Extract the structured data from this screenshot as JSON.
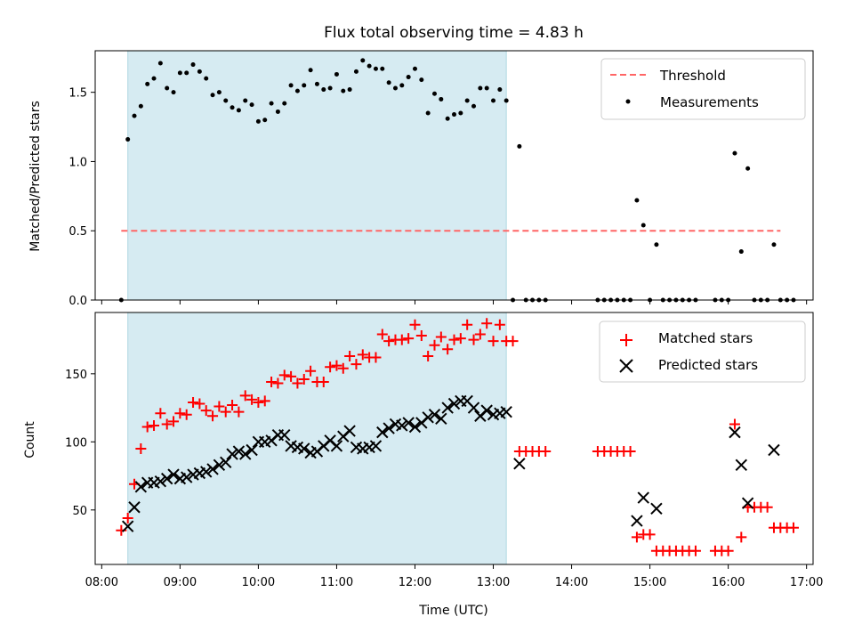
{
  "chart_data": [
    {
      "type": "scatter",
      "title": "Flux total observing time = 4.83 h",
      "xlabel": "",
      "ylabel": "Matched/Predicted stars",
      "ylim": [
        0,
        1.8
      ],
      "yticks": [
        "0.0",
        "0.5",
        "1.0",
        "1.5"
      ],
      "xlim": [
        "07:55",
        "17:05"
      ],
      "shaded_span": {
        "from": "08:20",
        "to": "13:10",
        "color": "#add8e6"
      },
      "legend_position": "top-right",
      "threshold": {
        "name": "Threshold",
        "y": 0.5,
        "x_from": "08:15",
        "x_to": "16:40",
        "color": "#ff6666",
        "style": "dashed"
      },
      "series": [
        {
          "name": "Measurements",
          "color": "#000000",
          "points": [
            [
              "08:15",
              0.0
            ],
            [
              "08:20",
              1.16
            ],
            [
              "08:25",
              1.33
            ],
            [
              "08:30",
              1.4
            ],
            [
              "08:35",
              1.56
            ],
            [
              "08:40",
              1.6
            ],
            [
              "08:45",
              1.71
            ],
            [
              "08:50",
              1.53
            ],
            [
              "08:55",
              1.5
            ],
            [
              "09:00",
              1.64
            ],
            [
              "09:05",
              1.64
            ],
            [
              "09:10",
              1.7
            ],
            [
              "09:15",
              1.65
            ],
            [
              "09:20",
              1.6
            ],
            [
              "09:25",
              1.48
            ],
            [
              "09:30",
              1.5
            ],
            [
              "09:35",
              1.44
            ],
            [
              "09:40",
              1.39
            ],
            [
              "09:45",
              1.37
            ],
            [
              "09:50",
              1.44
            ],
            [
              "09:55",
              1.41
            ],
            [
              "10:00",
              1.29
            ],
            [
              "10:05",
              1.3
            ],
            [
              "10:10",
              1.42
            ],
            [
              "10:15",
              1.36
            ],
            [
              "10:20",
              1.42
            ],
            [
              "10:25",
              1.55
            ],
            [
              "10:30",
              1.51
            ],
            [
              "10:35",
              1.55
            ],
            [
              "10:40",
              1.66
            ],
            [
              "10:45",
              1.56
            ],
            [
              "10:50",
              1.52
            ],
            [
              "10:55",
              1.53
            ],
            [
              "11:00",
              1.63
            ],
            [
              "11:05",
              1.51
            ],
            [
              "11:10",
              1.52
            ],
            [
              "11:15",
              1.65
            ],
            [
              "11:20",
              1.73
            ],
            [
              "11:25",
              1.69
            ],
            [
              "11:30",
              1.67
            ],
            [
              "11:35",
              1.67
            ],
            [
              "11:40",
              1.57
            ],
            [
              "11:45",
              1.53
            ],
            [
              "11:50",
              1.55
            ],
            [
              "11:55",
              1.61
            ],
            [
              "12:00",
              1.67
            ],
            [
              "12:05",
              1.59
            ],
            [
              "12:10",
              1.35
            ],
            [
              "12:15",
              1.49
            ],
            [
              "12:20",
              1.45
            ],
            [
              "12:25",
              1.31
            ],
            [
              "12:30",
              1.34
            ],
            [
              "12:35",
              1.35
            ],
            [
              "12:40",
              1.44
            ],
            [
              "12:45",
              1.4
            ],
            [
              "12:50",
              1.53
            ],
            [
              "12:55",
              1.53
            ],
            [
              "13:00",
              1.44
            ],
            [
              "13:05",
              1.52
            ],
            [
              "13:10",
              1.44
            ],
            [
              "13:15",
              0.0
            ],
            [
              "13:20",
              1.11
            ],
            [
              "13:25",
              0.0
            ],
            [
              "13:30",
              0.0
            ],
            [
              "13:35",
              0.0
            ],
            [
              "13:40",
              0.0
            ],
            [
              "14:20",
              0.0
            ],
            [
              "14:25",
              0.0
            ],
            [
              "14:30",
              0.0
            ],
            [
              "14:35",
              0.0
            ],
            [
              "14:40",
              0.0
            ],
            [
              "14:45",
              0.0
            ],
            [
              "14:50",
              0.72
            ],
            [
              "14:55",
              0.54
            ],
            [
              "15:00",
              0.0
            ],
            [
              "15:05",
              0.4
            ],
            [
              "15:10",
              0.0
            ],
            [
              "15:15",
              0.0
            ],
            [
              "15:20",
              0.0
            ],
            [
              "15:25",
              0.0
            ],
            [
              "15:30",
              0.0
            ],
            [
              "15:35",
              0.0
            ],
            [
              "15:50",
              0.0
            ],
            [
              "15:55",
              0.0
            ],
            [
              "16:00",
              0.0
            ],
            [
              "16:05",
              1.06
            ],
            [
              "16:10",
              0.35
            ],
            [
              "16:15",
              0.95
            ],
            [
              "16:20",
              0.0
            ],
            [
              "16:25",
              0.0
            ],
            [
              "16:30",
              0.0
            ],
            [
              "16:35",
              0.4
            ],
            [
              "16:40",
              0.0
            ],
            [
              "16:45",
              0.0
            ],
            [
              "16:50",
              0.0
            ]
          ]
        }
      ]
    },
    {
      "type": "scatter",
      "title": "",
      "xlabel": "Time (UTC)",
      "ylabel": "Count",
      "ylim": [
        10,
        195
      ],
      "yticks": [
        "50",
        "100",
        "150"
      ],
      "xlim": [
        "07:55",
        "17:05"
      ],
      "xticks": [
        "08:00",
        "09:00",
        "10:00",
        "11:00",
        "12:00",
        "13:00",
        "14:00",
        "15:00",
        "16:00",
        "17:00"
      ],
      "shaded_span": {
        "from": "08:20",
        "to": "13:10",
        "color": "#add8e6"
      },
      "legend_position": "top-right",
      "series": [
        {
          "name": "Matched stars",
          "color": "#ff0000",
          "marker": "plus",
          "points": [
            [
              "08:15",
              35
            ],
            [
              "08:20",
              44
            ],
            [
              "08:25",
              69
            ],
            [
              "08:30",
              95
            ],
            [
              "08:35",
              111
            ],
            [
              "08:40",
              112
            ],
            [
              "08:45",
              121
            ],
            [
              "08:50",
              113
            ],
            [
              "08:55",
              115
            ],
            [
              "09:00",
              121
            ],
            [
              "09:05",
              120
            ],
            [
              "09:10",
              129
            ],
            [
              "09:15",
              128
            ],
            [
              "09:20",
              123
            ],
            [
              "09:25",
              119
            ],
            [
              "09:30",
              126
            ],
            [
              "09:35",
              122
            ],
            [
              "09:40",
              127
            ],
            [
              "09:45",
              122
            ],
            [
              "09:50",
              134
            ],
            [
              "09:55",
              131
            ],
            [
              "10:00",
              129
            ],
            [
              "10:05",
              130
            ],
            [
              "10:10",
              144
            ],
            [
              "10:15",
              143
            ],
            [
              "10:20",
              149
            ],
            [
              "10:25",
              148
            ],
            [
              "10:30",
              143
            ],
            [
              "10:35",
              146
            ],
            [
              "10:40",
              152
            ],
            [
              "10:45",
              144
            ],
            [
              "10:50",
              144
            ],
            [
              "10:55",
              155
            ],
            [
              "11:00",
              156
            ],
            [
              "11:05",
              154
            ],
            [
              "11:10",
              163
            ],
            [
              "11:15",
              157
            ],
            [
              "11:20",
              164
            ],
            [
              "11:25",
              162
            ],
            [
              "11:30",
              162
            ],
            [
              "11:35",
              179
            ],
            [
              "11:40",
              174
            ],
            [
              "11:45",
              175
            ],
            [
              "11:50",
              175
            ],
            [
              "11:55",
              176
            ],
            [
              "12:00",
              186
            ],
            [
              "12:05",
              178
            ],
            [
              "12:10",
              163
            ],
            [
              "12:15",
              171
            ],
            [
              "12:20",
              177
            ],
            [
              "12:25",
              168
            ],
            [
              "12:30",
              175
            ],
            [
              "12:35",
              176
            ],
            [
              "12:40",
              186
            ],
            [
              "12:45",
              175
            ],
            [
              "12:50",
              179
            ],
            [
              "12:55",
              187
            ],
            [
              "13:00",
              174
            ],
            [
              "13:05",
              186
            ],
            [
              "13:10",
              174
            ],
            [
              "13:15",
              174
            ],
            [
              "13:20",
              93
            ],
            [
              "13:25",
              93
            ],
            [
              "13:30",
              93
            ],
            [
              "13:35",
              93
            ],
            [
              "13:40",
              93
            ],
            [
              "14:20",
              93
            ],
            [
              "14:25",
              93
            ],
            [
              "14:30",
              93
            ],
            [
              "14:35",
              93
            ],
            [
              "14:40",
              93
            ],
            [
              "14:45",
              93
            ],
            [
              "14:50",
              30
            ],
            [
              "14:55",
              32
            ],
            [
              "15:00",
              32
            ],
            [
              "15:05",
              20
            ],
            [
              "15:10",
              20
            ],
            [
              "15:15",
              20
            ],
            [
              "15:20",
              20
            ],
            [
              "15:25",
              20
            ],
            [
              "15:30",
              20
            ],
            [
              "15:35",
              20
            ],
            [
              "15:50",
              20
            ],
            [
              "15:55",
              20
            ],
            [
              "16:00",
              20
            ],
            [
              "16:05",
              113
            ],
            [
              "16:10",
              30
            ],
            [
              "16:15",
              52
            ],
            [
              "16:20",
              52
            ],
            [
              "16:25",
              52
            ],
            [
              "16:30",
              52
            ],
            [
              "16:35",
              37
            ],
            [
              "16:40",
              37
            ],
            [
              "16:45",
              37
            ],
            [
              "16:50",
              37
            ]
          ]
        },
        {
          "name": "Predicted stars",
          "color": "#000000",
          "marker": "x",
          "points": [
            [
              "08:20",
              38
            ],
            [
              "08:25",
              52
            ],
            [
              "08:30",
              67
            ],
            [
              "08:35",
              70
            ],
            [
              "08:40",
              70
            ],
            [
              "08:45",
              71
            ],
            [
              "08:50",
              73
            ],
            [
              "08:55",
              76
            ],
            [
              "09:00",
              73
            ],
            [
              "09:05",
              74
            ],
            [
              "09:10",
              76
            ],
            [
              "09:15",
              77
            ],
            [
              "09:20",
              78
            ],
            [
              "09:25",
              80
            ],
            [
              "09:30",
              83
            ],
            [
              "09:35",
              85
            ],
            [
              "09:40",
              91
            ],
            [
              "09:45",
              93
            ],
            [
              "09:50",
              91
            ],
            [
              "09:55",
              94
            ],
            [
              "10:00",
              100
            ],
            [
              "10:05",
              100
            ],
            [
              "10:10",
              101
            ],
            [
              "10:15",
              105
            ],
            [
              "10:20",
              105
            ],
            [
              "10:25",
              97
            ],
            [
              "10:30",
              96
            ],
            [
              "10:35",
              95
            ],
            [
              "10:40",
              92
            ],
            [
              "10:45",
              93
            ],
            [
              "10:50",
              97
            ],
            [
              "10:55",
              101
            ],
            [
              "11:00",
              97
            ],
            [
              "11:05",
              104
            ],
            [
              "11:10",
              108
            ],
            [
              "11:15",
              96
            ],
            [
              "11:20",
              95
            ],
            [
              "11:25",
              96
            ],
            [
              "11:30",
              97
            ],
            [
              "11:35",
              107
            ],
            [
              "11:40",
              110
            ],
            [
              "11:45",
              113
            ],
            [
              "11:50",
              112
            ],
            [
              "11:55",
              114
            ],
            [
              "12:00",
              111
            ],
            [
              "12:05",
              114
            ],
            [
              "12:10",
              118
            ],
            [
              "12:15",
              120
            ],
            [
              "12:20",
              117
            ],
            [
              "12:25",
              125
            ],
            [
              "12:30",
              128
            ],
            [
              "12:35",
              130
            ],
            [
              "12:40",
              130
            ],
            [
              "12:45",
              125
            ],
            [
              "12:50",
              119
            ],
            [
              "12:55",
              123
            ],
            [
              "13:00",
              120
            ],
            [
              "13:05",
              121
            ],
            [
              "13:10",
              122
            ],
            [
              "13:20",
              84
            ],
            [
              "14:50",
              42
            ],
            [
              "14:55",
              59
            ],
            [
              "15:05",
              51
            ],
            [
              "16:05",
              107
            ],
            [
              "16:10",
              83
            ],
            [
              "16:15",
              55
            ],
            [
              "16:35",
              94
            ]
          ]
        }
      ]
    }
  ]
}
